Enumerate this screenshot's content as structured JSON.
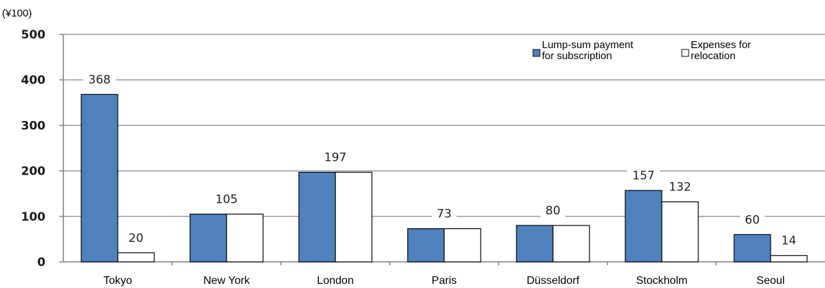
{
  "chart_data": {
    "type": "bar",
    "title": "",
    "ylabel": "",
    "unit_label": "(¥100)",
    "ylim": [
      0,
      500
    ],
    "yticks": [
      0,
      100,
      200,
      300,
      400,
      500
    ],
    "grid": true,
    "legend_position": "top-right",
    "categories": [
      "Tokyo",
      "New York",
      "London",
      "Paris",
      "Düsseldorf",
      "Stockholm",
      "Seoul"
    ],
    "series": [
      {
        "name": "Lump-sum payment for subscription",
        "legend_lines": [
          "Lump-sum payment",
          "for subscription"
        ],
        "color": "#4F81BD",
        "values": [
          368,
          105,
          197,
          73,
          80,
          157,
          60
        ]
      },
      {
        "name": "Expenses for relocation",
        "legend_lines": [
          "Expenses for",
          "relocation"
        ],
        "color": "#FFFFFF",
        "values": [
          20,
          105,
          197,
          73,
          80,
          132,
          14
        ]
      }
    ],
    "data_labels": [
      {
        "category": "Tokyo",
        "series": 0,
        "text": "368"
      },
      {
        "category": "Tokyo",
        "series": 1,
        "text": "20"
      },
      {
        "category": "New York",
        "series": "center",
        "text": "105"
      },
      {
        "category": "London",
        "series": "center",
        "text": "197"
      },
      {
        "category": "Paris",
        "series": "center",
        "text": "73"
      },
      {
        "category": "Düsseldorf",
        "series": "center",
        "text": "80"
      },
      {
        "category": "Stockholm",
        "series": 0,
        "text": "157"
      },
      {
        "category": "Stockholm",
        "series": 1,
        "text": "132"
      },
      {
        "category": "Seoul",
        "series": 0,
        "text": "60"
      },
      {
        "category": "Seoul",
        "series": 1,
        "text": "14"
      }
    ]
  }
}
